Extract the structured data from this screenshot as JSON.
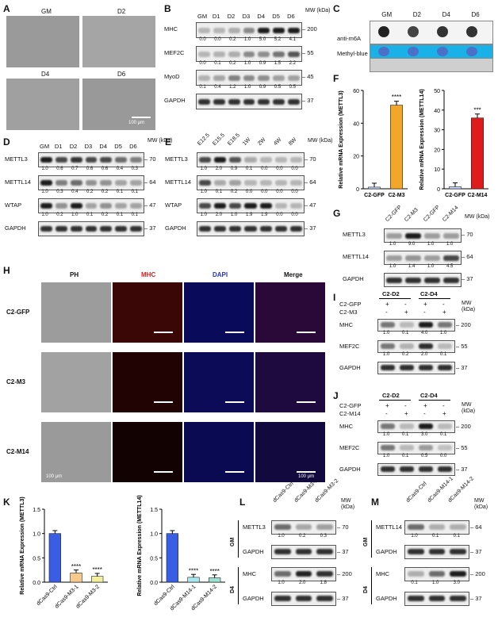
{
  "panels": [
    "A",
    "B",
    "C",
    "D",
    "E",
    "F",
    "G",
    "H",
    "I",
    "J",
    "K",
    "L",
    "M"
  ],
  "A": {
    "labels": [
      "GM",
      "D2",
      "D4",
      "D6"
    ],
    "scalebar": "100 μm"
  },
  "B": {
    "lanes": [
      "GM",
      "D1",
      "D2",
      "D3",
      "D4",
      "D5",
      "D6"
    ],
    "mw_title": "MW (kDa)",
    "rows": [
      {
        "name": "MHC",
        "mw": "200",
        "values": [
          "0.0",
          "0.0",
          "0.2",
          "1.0",
          "5.0",
          "5.2",
          "4.1"
        ]
      },
      {
        "name": "MEF2C",
        "mw": "55",
        "values": [
          "0.0",
          "0.1",
          "0.2",
          "1.0",
          "0.9",
          "1.5",
          "2.2"
        ]
      },
      {
        "name": "MyoD",
        "mw": "45",
        "values": [
          "0.1",
          "0.4",
          "1.2",
          "1.0",
          "0.9",
          "0.5",
          "0.5"
        ]
      },
      {
        "name": "GAPDH",
        "mw": "37",
        "values": []
      }
    ]
  },
  "C": {
    "lanes": [
      "GM",
      "D2",
      "D4",
      "D6"
    ],
    "rows": [
      "anti-m6A",
      "Methyl-blue"
    ]
  },
  "D": {
    "lanes": [
      "GM",
      "D1",
      "D2",
      "D3",
      "D4",
      "D5",
      "D6"
    ],
    "mw_title": "MW (kDa)",
    "rows": [
      {
        "name": "METTL3",
        "mw": "70",
        "values": [
          "1.0",
          "0.6",
          "0.7",
          "0.6",
          "0.6",
          "0.4",
          "0.3"
        ]
      },
      {
        "name": "METTL14",
        "mw": "64",
        "values": [
          "1.0",
          "0.3",
          "0.4",
          "0.2",
          "0.2",
          "0.1",
          "0.1"
        ]
      },
      {
        "name": "WTAP",
        "mw": "47",
        "values": [
          "1.0",
          "0.2",
          "1.0",
          "0.1",
          "0.2",
          "0.1",
          "0.1"
        ]
      },
      {
        "name": "GAPDH",
        "mw": "37",
        "values": []
      }
    ]
  },
  "E": {
    "lanes": [
      "E12.5",
      "E15.5",
      "E18.5",
      "1W",
      "2W",
      "4W",
      "8W"
    ],
    "mw_title": "MW (kDa)",
    "rows": [
      {
        "name": "METTL3",
        "mw": "70",
        "values": [
          "1.0",
          "2.0",
          "0.9",
          "0.1",
          "0.0",
          "0.0",
          "0.0"
        ]
      },
      {
        "name": "METTL14",
        "mw": "64",
        "values": [
          "1.0",
          "0.1",
          "0.2",
          "0.0",
          "0.0",
          "0.0",
          "0.0"
        ]
      },
      {
        "name": "WTAP",
        "mw": "47",
        "values": [
          "1.0",
          "2.0",
          "1.0",
          "1.9",
          "1.9",
          "0.0",
          "0.0"
        ]
      },
      {
        "name": "GAPDH",
        "mw": "37",
        "values": []
      }
    ]
  },
  "F": {
    "charts": [
      {
        "ylabel": "Relative mRNA Expression (METTL3)",
        "categories": [
          "C2-GFP",
          "C2-M3"
        ],
        "values": [
          1,
          51
        ],
        "ymax": 60,
        "ticks": [
          "0",
          "20",
          "40",
          "60"
        ],
        "sig": "****",
        "color": "#f4a62a"
      },
      {
        "ylabel": "Relative mRNA Expression (METTL14)",
        "categories": [
          "C2-GFP",
          "C2-M14"
        ],
        "values": [
          1,
          36
        ],
        "ymax": 50,
        "ticks": [
          "0",
          "10",
          "20",
          "30",
          "40",
          "50"
        ],
        "sig": "***",
        "color": "#e01b1b"
      }
    ]
  },
  "G": {
    "lanes": [
      "C2-GFP",
      "C2-M3",
      "C2-GFP",
      "C2-M14"
    ],
    "mw_title": "MW (kDa)",
    "rows": [
      {
        "name": "METTL3",
        "mw": "70",
        "values": [
          "1.0",
          "9.0",
          "1.0",
          "1.0"
        ]
      },
      {
        "name": "METTL14",
        "mw": "64",
        "values": [
          "1.0",
          "1.4",
          "1.0",
          "4.5"
        ]
      },
      {
        "name": "GAPDH",
        "mw": "37",
        "values": []
      }
    ]
  },
  "H": {
    "columns": [
      "PH",
      "MHC",
      "DAPI",
      "Merge"
    ],
    "column_colors": [
      "#111111",
      "#e01b1b",
      "#2430c8",
      "#111111"
    ],
    "rows": [
      "C2-GFP",
      "C2-M3",
      "C2-M14"
    ],
    "scalebar": "100 μm"
  },
  "I": {
    "groups": [
      "C2-D2",
      "C2-D4"
    ],
    "conditions": [
      {
        "name": "C2-GFP",
        "signs": [
          "+",
          "-",
          "+",
          "-"
        ]
      },
      {
        "name": "C2-M3",
        "signs": [
          "-",
          "+",
          "-",
          "+"
        ]
      }
    ],
    "mw_title": "MW (kDa)",
    "rows": [
      {
        "name": "MHC",
        "mw": "200",
        "values": [
          "1.0",
          "0.1",
          "4.0",
          "1.0"
        ]
      },
      {
        "name": "MEF2C",
        "mw": "55",
        "values": [
          "1.0",
          "0.2",
          "2.0",
          "0.1"
        ]
      },
      {
        "name": "GAPDH",
        "mw": "37",
        "values": []
      }
    ]
  },
  "J": {
    "groups": [
      "C2-D2",
      "C2-D4"
    ],
    "conditions": [
      {
        "name": "C2-GFP",
        "signs": [
          "+",
          "-",
          "+",
          "-"
        ]
      },
      {
        "name": "C2-M14",
        "signs": [
          "-",
          "+",
          "-",
          "+"
        ]
      }
    ],
    "mw_title": "MW (kDa)",
    "rows": [
      {
        "name": "MHC",
        "mw": "200",
        "values": [
          "1.0",
          "0.1",
          "3.0",
          "0.1"
        ]
      },
      {
        "name": "MEF2C",
        "mw": "55",
        "values": [
          "1.0",
          "0.1",
          "0.5",
          "0.0"
        ]
      },
      {
        "name": "GAPDH",
        "mw": "37",
        "values": []
      }
    ]
  },
  "K": {
    "charts": [
      {
        "ylabel": "Relative mRNA Expression (METTL3)",
        "categories": [
          "dCas9-Ctrl",
          "dCas9-M3-1",
          "dCas9-M3-2"
        ],
        "values": [
          1.0,
          0.19,
          0.12
        ],
        "ymax": 1.5,
        "ticks": [
          "0.0",
          "0.5",
          "1.0",
          "1.5"
        ],
        "sig": [
          "",
          "****",
          "****"
        ],
        "colors": [
          "#3a5de6",
          "#f7c98a",
          "#f3ef9a"
        ]
      },
      {
        "ylabel": "Relative mRNA Expression (METTL14)",
        "categories": [
          "dCas9-Ctrl",
          "dCas9-M14-1",
          "dCas9-M14-2"
        ],
        "values": [
          1.0,
          0.1,
          0.09
        ],
        "ymax": 1.5,
        "ticks": [
          "0.0",
          "0.5",
          "1.0",
          "1.5"
        ],
        "sig": [
          "",
          "****",
          "****"
        ],
        "colors": [
          "#3a5de6",
          "#a9e6ee",
          "#9ee0d2"
        ]
      }
    ]
  },
  "L": {
    "lanes": [
      "dCas9-Ctrl",
      "dCas9-M3-1",
      "dCas9-M3-2"
    ],
    "mw_title": "MW (kDa)",
    "sections": [
      {
        "label": "GM",
        "rows": [
          {
            "name": "METTL3",
            "mw": "70",
            "values": [
              "1.0",
              "0.2",
              "0.3"
            ]
          },
          {
            "name": "GAPDH",
            "mw": "37",
            "values": []
          }
        ]
      },
      {
        "label": "D4",
        "rows": [
          {
            "name": "MHC",
            "mw": "200",
            "values": [
              "1.0",
              "2.0",
              "1.8"
            ]
          },
          {
            "name": "GAPDH",
            "mw": "37",
            "values": []
          }
        ]
      }
    ]
  },
  "M": {
    "lanes": [
      "dCas9-Ctrl",
      "dCas9-M14-1",
      "dCas9-M14-2"
    ],
    "mw_title": "MW (kDa)",
    "sections": [
      {
        "label": "GM",
        "rows": [
          {
            "name": "METTL14",
            "mw": "64",
            "values": [
              "1.0",
              "0.1",
              "0.1"
            ]
          },
          {
            "name": "GAPDH",
            "mw": "37",
            "values": []
          }
        ]
      },
      {
        "label": "D4",
        "rows": [
          {
            "name": "MHC",
            "mw": "200",
            "values": [
              "0.1",
              "1.0",
              "3.0"
            ]
          },
          {
            "name": "GAPDH",
            "mw": "37",
            "values": []
          }
        ]
      }
    ]
  }
}
